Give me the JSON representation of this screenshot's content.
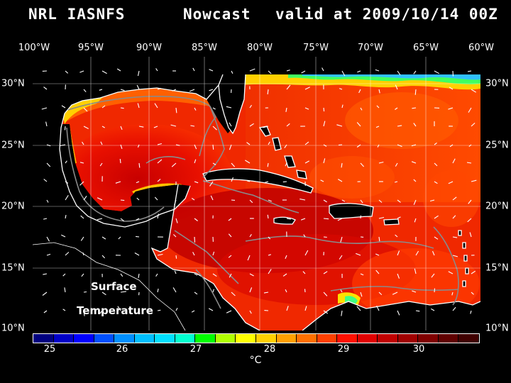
{
  "header": {
    "model": "NRL IASNFS",
    "product": "Nowcast",
    "validity": "valid at 2009/10/14 00Z"
  },
  "axes": {
    "lon_labels": [
      "100°W",
      "95°W",
      "90°W",
      "85°W",
      "80°W",
      "75°W",
      "70°W",
      "65°W",
      "60°W"
    ],
    "lat_labels": [
      "30°N",
      "25°N",
      "20°N",
      "15°N",
      "10°N"
    ]
  },
  "map": {
    "overlay_line1": "Surface",
    "overlay_line2": "Temperature",
    "land_color": "#000000",
    "coast_color": "#ffffff",
    "contour_color": "#8a8a8a",
    "grid_color": "#ffffff"
  },
  "colorbar": {
    "tick_labels": [
      "25",
      "26",
      "27",
      "28",
      "29",
      "30"
    ],
    "unit": "°C",
    "colors": [
      "#000080",
      "#0000c8",
      "#0000ff",
      "#0050ff",
      "#0090ff",
      "#00c0ff",
      "#00e0ff",
      "#00ffd0",
      "#00ff00",
      "#b0ff00",
      "#ffff00",
      "#ffd000",
      "#ffa000",
      "#ff7000",
      "#ff4000",
      "#ff1000",
      "#e00000",
      "#c00000",
      "#a00000",
      "#800000",
      "#600000",
      "#400000"
    ]
  }
}
